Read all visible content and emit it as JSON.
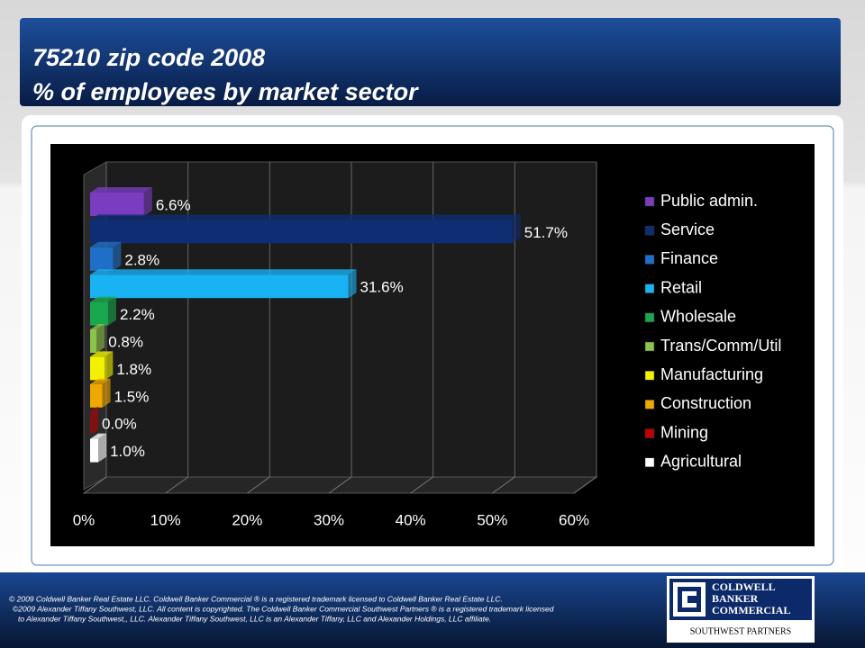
{
  "chart_data": {
    "type": "bar3d-horizontal",
    "title": "75210 zip code 2008",
    "subtitle": "% of employees by market sector",
    "categories": [
      "Public admin.",
      "Service",
      "Finance",
      "Retail",
      "Wholesale",
      "Trans/Comm/Util",
      "Manufacturing",
      "Construction",
      "Mining",
      "Agricultural"
    ],
    "values": [
      6.6,
      51.7,
      2.8,
      31.6,
      2.2,
      0.8,
      1.8,
      1.5,
      0.0,
      1.0
    ],
    "value_labels": [
      "6.6%",
      "51.7%",
      "2.8%",
      "31.6%",
      "2.2%",
      "0.8%",
      "1.8%",
      "1.5%",
      "0.0%",
      "1.0%"
    ],
    "colors": [
      "#7a3cc0",
      "#0f2d72",
      "#1f6fc8",
      "#19b2f2",
      "#1aa84f",
      "#8cc34a",
      "#f2f200",
      "#f0a800",
      "#c00000",
      "#ffffff"
    ],
    "xlim": [
      0,
      60
    ],
    "xticks": [
      {
        "value": 0,
        "label": "0%"
      },
      {
        "value": 10,
        "label": "10%"
      },
      {
        "value": 20,
        "label": "20%"
      },
      {
        "value": 30,
        "label": "30%"
      },
      {
        "value": 40,
        "label": "40%"
      },
      {
        "value": 50,
        "label": "50%"
      },
      {
        "value": 60,
        "label": "60%"
      }
    ],
    "grid": true,
    "legend": "right"
  },
  "footer": {
    "lines": [
      "© 2009 Coldwell Banker Real Estate LLC. Coldwell Banker Commercial ® is a registered trademark licensed to Coldwell Banker Real Estate LLC.",
      "©2009 Alexander Tiffany Southwest, LLC. All content is copyrighted. The Coldwell Banker Commercial Southwest Partners ® is a registered trademark licensed",
      "to Alexander Tiffany Southwest,, LLC.  Alexander Tiffany Southwest, LLC is an Alexander Tiffany, LLC and Alexander Holdings, LLC affiliate."
    ]
  },
  "logo": {
    "lines": [
      "COLDWELL",
      "BANKER",
      "COMMERCIAL"
    ],
    "tagline": "SOUTHWEST PARTNERS"
  }
}
